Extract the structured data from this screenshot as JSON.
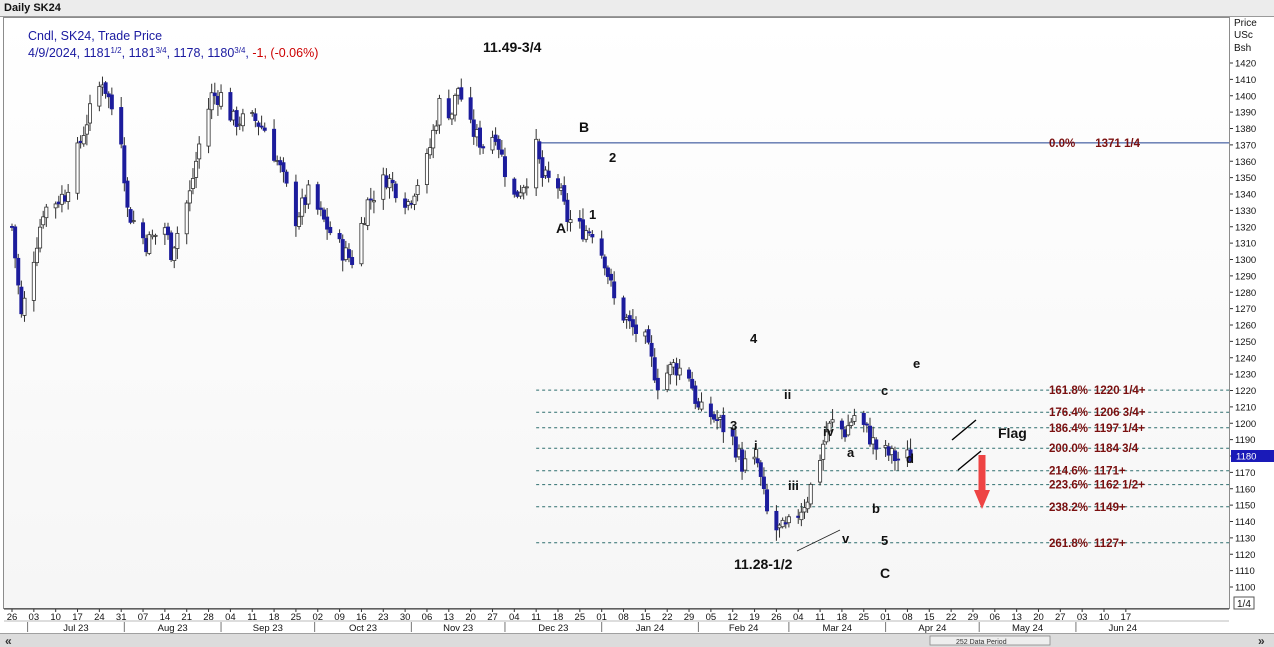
{
  "window": {
    "title": "Daily SK24"
  },
  "legend": {
    "line1": "Cndl, SK24, Trade Price",
    "prefix": "4/9/2024, ",
    "open_int": "1181",
    "open_frac": "1/2",
    "high_int": "1181",
    "high_frac": "3/4",
    "low": "1178",
    "close_int": "1180",
    "close_frac": "3/4",
    "change": "-1, (-0.06%)"
  },
  "price_axis": {
    "header": [
      "Price",
      "USc",
      "Bsh"
    ],
    "last_price": "1180"
  },
  "page_indicator": "1/4",
  "bottom_bar": {
    "label": "252 Data Period",
    "left_arrows": "«",
    "right_arrows": "»"
  },
  "colors": {
    "up_body": "#ffffff",
    "down_body": "#1c1c9c",
    "candle_outline": "#303030",
    "fib_line": "#2f6f6f",
    "fib_label": "#7a1010",
    "legend_text": "#1a1aa0",
    "change_text": "#cc0000",
    "highlight_price": "#1a1ab8",
    "arrow": "#ee4444",
    "horizontal_line": "#1f3f8f"
  },
  "chart_data": {
    "type": "candlestick",
    "title": "Daily SK24",
    "xlabel": "",
    "ylabel": "Price USc Bsh",
    "ylim": [
      1095,
      1430
    ],
    "y_ticks": [
      1100,
      1110,
      1120,
      1130,
      1140,
      1150,
      1160,
      1170,
      1180,
      1190,
      1200,
      1210,
      1220,
      1230,
      1240,
      1250,
      1260,
      1270,
      1280,
      1290,
      1300,
      1310,
      1320,
      1330,
      1340,
      1350,
      1360,
      1370,
      1380,
      1390,
      1400,
      1410,
      1420
    ],
    "grid": false,
    "day_ticks": [
      "26",
      "03",
      "10",
      "17",
      "24",
      "31",
      "07",
      "14",
      "21",
      "28",
      "04",
      "11",
      "18",
      "25",
      "02",
      "09",
      "16",
      "23",
      "30",
      "06",
      "13",
      "20",
      "27",
      "04",
      "11",
      "18",
      "25",
      "01",
      "08",
      "15",
      "22",
      "29",
      "05",
      "12",
      "19",
      "26",
      "04",
      "11",
      "18",
      "25",
      "01",
      "08",
      "15",
      "22",
      "29",
      "06",
      "13",
      "20",
      "27",
      "03",
      "10",
      "17"
    ],
    "month_labels": [
      "Jul 23",
      "Aug 23",
      "Sep 23",
      "Oct 23",
      "Nov 23",
      "Dec 23",
      "Jan 24",
      "Feb 24",
      "Mar 24",
      "Apr 24",
      "May 24",
      "Jun 24"
    ],
    "series": [
      {
        "name": "SK24 Trade Price",
        "anchors": [
          [
            "2023-06-26",
            1320
          ],
          [
            "2023-06-29",
            1265
          ],
          [
            "2023-07-06",
            1330
          ],
          [
            "2023-07-13",
            1340
          ],
          [
            "2023-07-20",
            1385
          ],
          [
            "2023-07-25",
            1410
          ],
          [
            "2023-07-31",
            1375
          ],
          [
            "2023-08-02",
            1330
          ],
          [
            "2023-08-08",
            1310
          ],
          [
            "2023-08-14",
            1320
          ],
          [
            "2023-08-16",
            1305
          ],
          [
            "2023-08-22",
            1340
          ],
          [
            "2023-08-25",
            1370
          ],
          [
            "2023-08-29",
            1400
          ],
          [
            "2023-09-01",
            1400
          ],
          [
            "2023-09-05",
            1385
          ],
          [
            "2023-09-12",
            1385
          ],
          [
            "2023-09-15",
            1380
          ],
          [
            "2023-09-20",
            1355
          ],
          [
            "2023-09-25",
            1325
          ],
          [
            "2023-09-29",
            1340
          ],
          [
            "2023-10-05",
            1320
          ],
          [
            "2023-10-10",
            1305
          ],
          [
            "2023-10-13",
            1300
          ],
          [
            "2023-10-18",
            1335
          ],
          [
            "2023-10-24",
            1350
          ],
          [
            "2023-10-31",
            1335
          ],
          [
            "2023-11-06",
            1360
          ],
          [
            "2023-11-10",
            1395
          ],
          [
            "2023-11-14",
            1390
          ],
          [
            "2023-11-16",
            1405
          ],
          [
            "2023-11-20",
            1380
          ],
          [
            "2023-11-24",
            1370
          ],
          [
            "2023-11-28",
            1378
          ],
          [
            "2023-12-01",
            1355
          ],
          [
            "2023-12-04",
            1338
          ],
          [
            "2023-12-08",
            1350
          ],
          [
            "2023-12-11",
            1368
          ],
          [
            "2023-12-13",
            1350
          ],
          [
            "2023-12-18",
            1345
          ],
          [
            "2023-12-21",
            1325
          ],
          [
            "2023-12-26",
            1318
          ],
          [
            "2023-12-29",
            1318
          ],
          [
            "2024-01-02",
            1300
          ],
          [
            "2024-01-05",
            1275
          ],
          [
            "2024-01-10",
            1260
          ],
          [
            "2024-01-15",
            1250
          ],
          [
            "2024-01-19",
            1225
          ],
          [
            "2024-01-24",
            1235
          ],
          [
            "2024-01-29",
            1230
          ],
          [
            "2024-02-01",
            1208
          ],
          [
            "2024-02-05",
            1205
          ],
          [
            "2024-02-08",
            1200
          ],
          [
            "2024-02-12",
            1190
          ],
          [
            "2024-02-15",
            1175
          ],
          [
            "2024-02-20",
            1175
          ],
          [
            "2024-02-23",
            1145
          ],
          [
            "2024-02-26",
            1135
          ],
          [
            "2024-02-29",
            1135
          ],
          [
            "2024-03-04",
            1145
          ],
          [
            "2024-03-07",
            1155
          ],
          [
            "2024-03-11",
            1180
          ],
          [
            "2024-03-13",
            1195
          ],
          [
            "2024-03-15",
            1200
          ],
          [
            "2024-03-19",
            1195
          ],
          [
            "2024-03-22",
            1205
          ],
          [
            "2024-03-26",
            1195
          ],
          [
            "2024-03-29",
            1185
          ],
          [
            "2024-04-03",
            1180
          ],
          [
            "2024-04-05",
            1178
          ],
          [
            "2024-04-09",
            1180
          ]
        ]
      }
    ],
    "fib_levels": [
      {
        "label": "0.0%",
        "value": "1371 1/4",
        "y": 1371.25
      },
      {
        "label": "161.8%",
        "value": "1220 1/4+",
        "y": 1220.25
      },
      {
        "label": "176.4%",
        "value": "1206 3/4+",
        "y": 1206.75
      },
      {
        "label": "186.4%",
        "value": "1197 1/4+",
        "y": 1197.25
      },
      {
        "label": "200.0%",
        "value": "1184 3/4",
        "y": 1184.75
      },
      {
        "label": "214.6%",
        "value": "1171+",
        "y": 1171
      },
      {
        "label": "223.6%",
        "value": "1162 1/2+",
        "y": 1162.5
      },
      {
        "label": "238.2%",
        "value": "1149+",
        "y": 1149
      },
      {
        "label": "261.8%",
        "value": "1127+",
        "y": 1127
      }
    ],
    "annotations": [
      {
        "text": "11.49-3/4",
        "bold": true,
        "size": 14
      },
      {
        "text": "B",
        "bold": true,
        "size": 14
      },
      {
        "text": "2",
        "bold": true,
        "size": 13
      },
      {
        "text": "A",
        "bold": true,
        "size": 14
      },
      {
        "text": "1",
        "bold": true,
        "size": 13
      },
      {
        "text": "4",
        "bold": true,
        "size": 13
      },
      {
        "text": "3",
        "bold": true,
        "size": 13
      },
      {
        "text": "ii",
        "bold": true,
        "size": 13
      },
      {
        "text": "i",
        "bold": true,
        "size": 13
      },
      {
        "text": "iv",
        "bold": true,
        "size": 13
      },
      {
        "text": "iii",
        "bold": true,
        "size": 13
      },
      {
        "text": "a",
        "bold": true,
        "size": 13
      },
      {
        "text": "b",
        "bold": true,
        "size": 13
      },
      {
        "text": "v",
        "bold": true,
        "size": 13
      },
      {
        "text": "5",
        "bold": true,
        "size": 13
      },
      {
        "text": "C",
        "bold": true,
        "size": 14
      },
      {
        "text": "c",
        "bold": true,
        "size": 13
      },
      {
        "text": "d",
        "bold": true,
        "size": 13
      },
      {
        "text": "e",
        "bold": true,
        "size": 13
      },
      {
        "text": "Flag",
        "bold": true,
        "size": 14
      },
      {
        "text": "11.28-1/2",
        "bold": true,
        "size": 14
      }
    ]
  }
}
